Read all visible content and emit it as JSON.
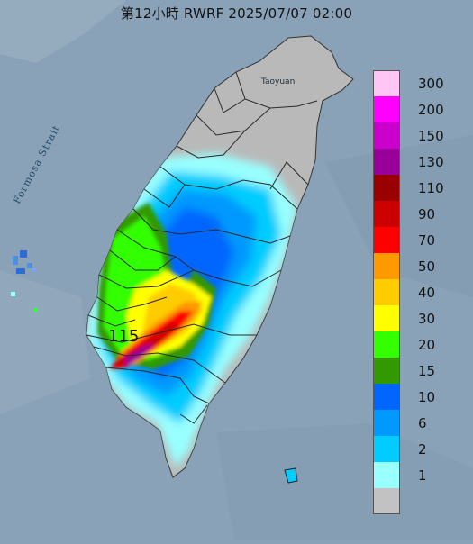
{
  "title": "第12小時  RWRF 2025/07/07 02:00",
  "strait_label": "Formosa Strait",
  "city_label": "Taoyuan",
  "peak_value": "115",
  "colors": {
    "sea": "#8aa2b7",
    "land": "#b9b9b9",
    "border": "#2a2a2a"
  },
  "legend": [
    {
      "label": "300",
      "color": "#ffc6f5"
    },
    {
      "label": "200",
      "color": "#ff00ff"
    },
    {
      "label": "150",
      "color": "#cc00cc"
    },
    {
      "label": "130",
      "color": "#990099"
    },
    {
      "label": "110",
      "color": "#990000"
    },
    {
      "label": "90",
      "color": "#cc0000"
    },
    {
      "label": "70",
      "color": "#ff0000"
    },
    {
      "label": "50",
      "color": "#ff9900"
    },
    {
      "label": "40",
      "color": "#ffcc00"
    },
    {
      "label": "30",
      "color": "#ffff00"
    },
    {
      "label": "20",
      "color": "#33ff00"
    },
    {
      "label": "15",
      "color": "#339900"
    },
    {
      "label": "10",
      "color": "#0066ff"
    },
    {
      "label": "6",
      "color": "#0099ff"
    },
    {
      "label": "2",
      "color": "#00ccff"
    },
    {
      "label": "1",
      "color": "#99ffff"
    },
    {
      "label": "",
      "color": "#c2c2c2"
    }
  ]
}
